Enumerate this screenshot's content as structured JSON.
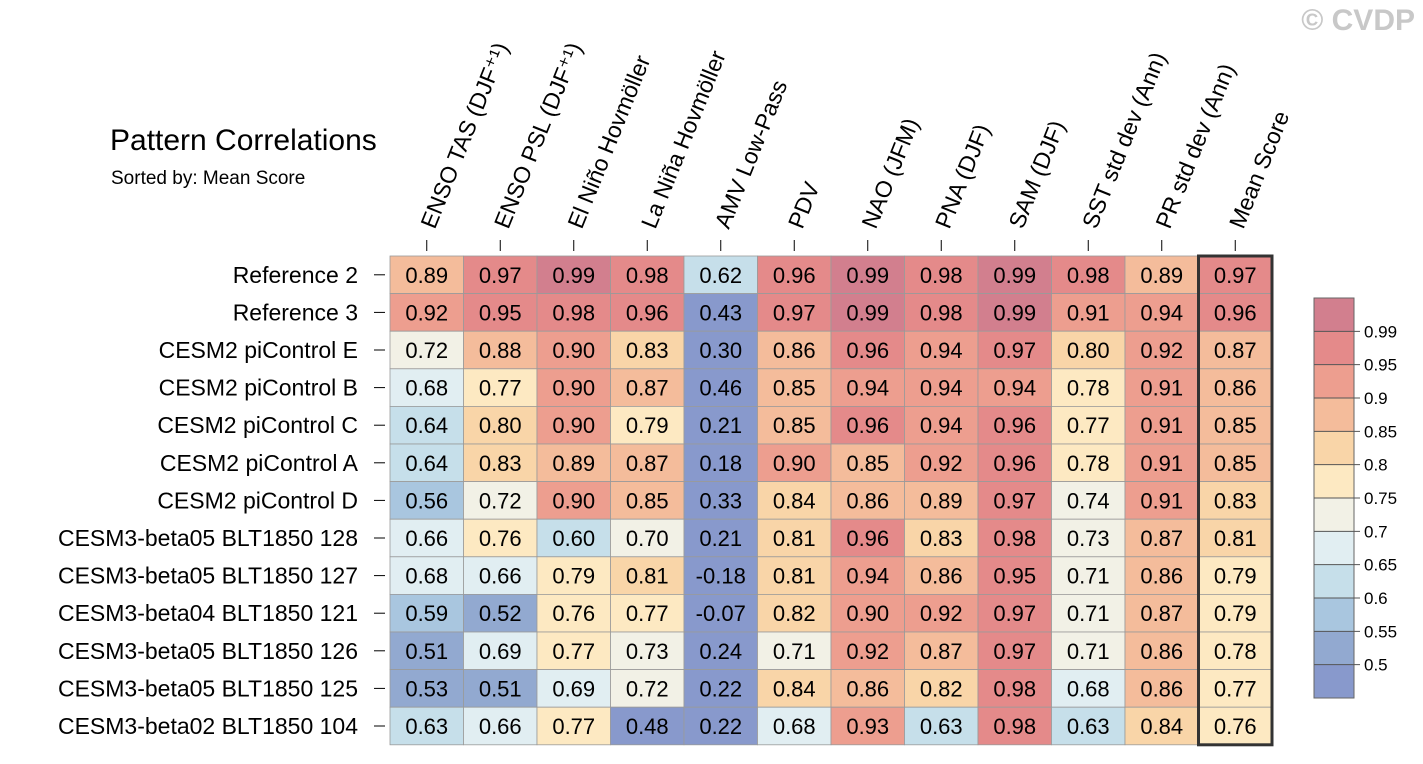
{
  "watermark": "© CVDP",
  "chart_data": {
    "type": "heatmap",
    "title": "Pattern Correlations",
    "subtitle": "Sorted by: Mean Score",
    "columns": [
      "ENSO TAS (DJF⁺¹)",
      "ENSO PSL (DJF⁺¹)",
      "El Niño Hovmöller",
      "La Niña Hovmöller",
      "AMV Low-Pass",
      "PDV",
      "NAO (JFM)",
      "PNA (DJF)",
      "SAM (DJF)",
      "SST std dev (Ann)",
      "PR std dev (Ann)",
      "Mean Score"
    ],
    "rows": [
      "Reference 2",
      "Reference 3",
      "CESM2 piControl E",
      "CESM2 piControl B",
      "CESM2 piControl C",
      "CESM2 piControl A",
      "CESM2 piControl D",
      "CESM3-beta05 BLT1850 128",
      "CESM3-beta05 BLT1850 127",
      "CESM3-beta04 BLT1850 121",
      "CESM3-beta05 BLT1850 126",
      "CESM3-beta05 BLT1850 125",
      "CESM3-beta02 BLT1850 104"
    ],
    "values": [
      [
        "0.89",
        "0.97",
        "0.99",
        "0.98",
        "0.62",
        "0.96",
        "0.99",
        "0.98",
        "0.99",
        "0.98",
        "0.89",
        "0.97"
      ],
      [
        "0.92",
        "0.95",
        "0.98",
        "0.96",
        "0.43",
        "0.97",
        "0.99",
        "0.98",
        "0.99",
        "0.91",
        "0.94",
        "0.96"
      ],
      [
        "0.72",
        "0.88",
        "0.90",
        "0.83",
        "0.30",
        "0.86",
        "0.96",
        "0.94",
        "0.97",
        "0.80",
        "0.92",
        "0.87"
      ],
      [
        "0.68",
        "0.77",
        "0.90",
        "0.87",
        "0.46",
        "0.85",
        "0.94",
        "0.94",
        "0.94",
        "0.78",
        "0.91",
        "0.86"
      ],
      [
        "0.64",
        "0.80",
        "0.90",
        "0.79",
        "0.21",
        "0.85",
        "0.96",
        "0.94",
        "0.96",
        "0.77",
        "0.91",
        "0.85"
      ],
      [
        "0.64",
        "0.83",
        "0.89",
        "0.87",
        "0.18",
        "0.90",
        "0.85",
        "0.92",
        "0.96",
        "0.78",
        "0.91",
        "0.85"
      ],
      [
        "0.56",
        "0.72",
        "0.90",
        "0.85",
        "0.33",
        "0.84",
        "0.86",
        "0.89",
        "0.97",
        "0.74",
        "0.91",
        "0.83"
      ],
      [
        "0.66",
        "0.76",
        "0.60",
        "0.70",
        "0.21",
        "0.81",
        "0.96",
        "0.83",
        "0.98",
        "0.73",
        "0.87",
        "0.81"
      ],
      [
        "0.68",
        "0.66",
        "0.79",
        "0.81",
        "-0.18",
        "0.81",
        "0.94",
        "0.86",
        "0.95",
        "0.71",
        "0.86",
        "0.79"
      ],
      [
        "0.59",
        "0.52",
        "0.76",
        "0.77",
        "-0.07",
        "0.82",
        "0.90",
        "0.92",
        "0.97",
        "0.71",
        "0.87",
        "0.79"
      ],
      [
        "0.51",
        "0.69",
        "0.77",
        "0.73",
        "0.24",
        "0.71",
        "0.92",
        "0.87",
        "0.97",
        "0.71",
        "0.86",
        "0.78"
      ],
      [
        "0.53",
        "0.51",
        "0.69",
        "0.72",
        "0.22",
        "0.84",
        "0.86",
        "0.82",
        "0.98",
        "0.68",
        "0.86",
        "0.77"
      ],
      [
        "0.63",
        "0.66",
        "0.77",
        "0.48",
        "0.22",
        "0.68",
        "0.93",
        "0.63",
        "0.98",
        "0.63",
        "0.84",
        "0.76"
      ]
    ],
    "colorbar": {
      "levels": [
        "0.99",
        "0.95",
        "0.9",
        "0.85",
        "0.8",
        "0.75",
        "0.7",
        "0.65",
        "0.6",
        "0.55",
        "0.5"
      ],
      "colors": [
        "#d27f8e",
        "#e48a8a",
        "#ed9e8f",
        "#f4bc9b",
        "#f9d5a8",
        "#fde9c2",
        "#f2f1e6",
        "#e1eef2",
        "#c6dfea",
        "#a9c6df",
        "#92a9d0",
        "#8899cc"
      ]
    }
  }
}
